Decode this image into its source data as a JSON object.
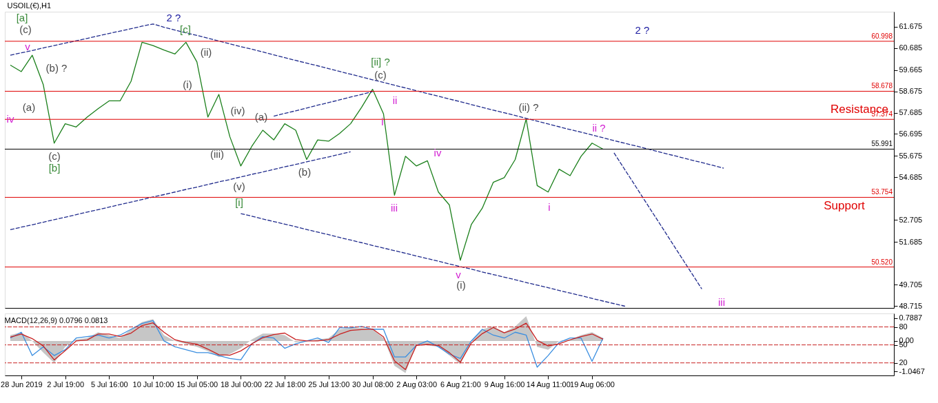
{
  "chart_data": [
    {
      "type": "line",
      "title": "USOIL(€),H1",
      "ylim": [
        48.62,
        62.37
      ],
      "categories": [
        null,
        null,
        null,
        null,
        null,
        null,
        null,
        null,
        null,
        null,
        null,
        null,
        null,
        null,
        null,
        null,
        null,
        null,
        null,
        null,
        null,
        null,
        null,
        null,
        null,
        null,
        null,
        null,
        null,
        null,
        null,
        null,
        null,
        null,
        null,
        null,
        null,
        null,
        null,
        null,
        null,
        null,
        null,
        null,
        null,
        null,
        null,
        null,
        null,
        null,
        null,
        null,
        null,
        null,
        null,
        null,
        null,
        null,
        null,
        null,
        null,
        null,
        null,
        null,
        null,
        null,
        null,
        null,
        null,
        null,
        null,
        null,
        null,
        null,
        null,
        null,
        null,
        null,
        null,
        null,
        null
      ],
      "yticks": [
        61.675,
        60.685,
        59.665,
        58.675,
        57.685,
        56.695,
        55.675,
        54.685,
        52.705,
        51.685,
        49.705,
        48.715
      ],
      "tick_labels": "y",
      "grid": false,
      "series": [
        {
          "color": "#1a7f1a",
          "line_style": "solid",
          "values": [
            59.89,
            59.59,
            60.35,
            58.99,
            56.27,
            57.17,
            57.02,
            57.48,
            57.87,
            58.23,
            58.23,
            59.14,
            60.95,
            60.8,
            60.59,
            60.41,
            60.95,
            60.04,
            57.48,
            58.53,
            56.57,
            55.21,
            56.12,
            56.87,
            56.42,
            57.17,
            56.87,
            55.51,
            56.42,
            56.36,
            56.72,
            57.17,
            57.93,
            58.77,
            57.63,
            53.85,
            55.66,
            55.21,
            55.45,
            54.0,
            53.4,
            50.83,
            52.49,
            53.25,
            54.45,
            54.67,
            55.51,
            57.39,
            54.3,
            54.0,
            55.06,
            54.76,
            55.66,
            56.27,
            55.99,
            null,
            null,
            null,
            null,
            null,
            null,
            null,
            null,
            null,
            null,
            null,
            null,
            null,
            null,
            null,
            null,
            null,
            null,
            null,
            null,
            null,
            null,
            null,
            null,
            null,
            null
          ]
        },
        {
          "color": "#1f2a8c",
          "line_style": "dashed",
          "values": [
            60.35,
            60.46,
            60.57,
            60.69,
            60.8,
            60.91,
            61.02,
            61.13,
            61.25,
            61.36,
            61.47,
            61.58,
            61.7,
            61.8,
            61.65,
            61.52,
            61.39,
            61.27,
            61.14,
            61.01,
            60.88,
            60.75,
            60.63,
            60.5,
            60.37,
            60.24,
            60.11,
            59.98,
            59.86,
            59.73,
            59.6,
            59.47,
            59.34,
            59.21,
            59.09,
            58.96,
            58.83,
            58.7,
            58.57,
            58.45,
            58.32,
            58.19,
            58.06,
            57.93,
            57.8,
            57.68,
            57.55,
            57.42,
            57.29,
            57.16,
            57.03,
            56.9,
            56.78,
            56.65,
            56.52,
            56.39,
            56.26,
            56.14,
            56.01,
            55.88,
            55.75,
            55.62,
            55.49,
            55.37,
            55.24,
            55.11,
            null,
            null,
            null,
            null,
            null,
            null,
            null,
            null,
            null,
            null,
            null,
            null,
            null,
            null,
            null
          ]
        },
        {
          "color": "#1f2a8c",
          "line_style": "dashed",
          "values": [
            52.25,
            52.37,
            52.48,
            52.6,
            52.72,
            52.83,
            52.95,
            53.07,
            53.18,
            53.3,
            53.42,
            53.53,
            53.65,
            53.77,
            53.88,
            54.0,
            54.12,
            54.23,
            54.35,
            54.47,
            54.58,
            54.7,
            54.82,
            54.93,
            55.05,
            55.17,
            55.28,
            55.4,
            55.52,
            55.63,
            55.75,
            55.87,
            null,
            null,
            null,
            null,
            null,
            null,
            null,
            null,
            null,
            null,
            null,
            null,
            null,
            null,
            null,
            null,
            null,
            null,
            null,
            null,
            null,
            null,
            null,
            null,
            null,
            null,
            null,
            null,
            null,
            null,
            null,
            null,
            null,
            null,
            null,
            null,
            null,
            null,
            null,
            null,
            null,
            null,
            null,
            null,
            null,
            null,
            null,
            null,
            null
          ]
        },
        {
          "color": "#1f2a8c",
          "line_style": "dashed",
          "values": [
            null,
            null,
            null,
            null,
            null,
            null,
            null,
            null,
            null,
            null,
            null,
            null,
            null,
            null,
            null,
            null,
            null,
            null,
            null,
            null,
            null,
            null,
            null,
            null,
            57.52,
            57.65,
            57.77,
            57.9,
            58.03,
            58.15,
            58.28,
            58.41,
            58.53,
            58.66,
            null,
            null,
            null,
            null,
            null,
            null,
            null,
            null,
            null,
            null,
            null,
            null,
            null,
            null,
            null,
            null,
            null,
            null,
            null,
            null,
            null,
            null,
            null,
            null,
            null,
            null,
            null,
            null,
            null,
            null,
            null,
            null,
            null,
            null,
            null,
            null,
            null,
            null,
            null,
            null,
            null,
            null,
            null,
            null,
            null,
            null,
            null
          ]
        },
        {
          "color": "#1f2a8c",
          "line_style": "dashed",
          "values": [
            null,
            null,
            null,
            null,
            null,
            null,
            null,
            null,
            null,
            null,
            null,
            null,
            null,
            null,
            null,
            null,
            null,
            null,
            null,
            null,
            null,
            53.0,
            52.88,
            52.75,
            52.63,
            52.51,
            52.39,
            52.26,
            52.14,
            52.02,
            51.89,
            51.77,
            51.65,
            51.52,
            51.4,
            51.28,
            51.16,
            51.03,
            50.91,
            50.79,
            50.66,
            50.54,
            50.42,
            50.29,
            50.17,
            50.05,
            49.93,
            49.8,
            49.68,
            49.56,
            49.43,
            49.31,
            49.19,
            49.06,
            48.94,
            48.82,
            48.7,
            null,
            null,
            null,
            null,
            null,
            null,
            null,
            null,
            null,
            null,
            null,
            null,
            null,
            null,
            null,
            null,
            null,
            null,
            null,
            null,
            null,
            null,
            null,
            null
          ]
        },
        {
          "color": "#1f2a8c",
          "line_style": "dashed",
          "values": [
            null,
            null,
            null,
            null,
            null,
            null,
            null,
            null,
            null,
            null,
            null,
            null,
            null,
            null,
            null,
            null,
            null,
            null,
            null,
            null,
            null,
            null,
            null,
            null,
            null,
            null,
            null,
            null,
            null,
            null,
            null,
            null,
            null,
            null,
            null,
            null,
            null,
            null,
            null,
            null,
            null,
            null,
            null,
            null,
            null,
            null,
            null,
            null,
            null,
            null,
            null,
            null,
            null,
            null,
            null,
            55.82,
            55.03,
            54.24,
            53.45,
            52.66,
            51.87,
            51.08,
            50.29,
            49.5,
            null,
            null,
            null,
            null,
            null,
            null,
            null,
            null,
            null,
            null,
            null,
            null,
            null,
            null,
            null,
            null,
            null
          ]
        }
      ],
      "ref_lines": [
        {
          "axis": "y",
          "value": 60.998,
          "label": "60.998",
          "color": "#e00000"
        },
        {
          "axis": "y",
          "value": 58.678,
          "label": "58.678",
          "color": "#e00000"
        },
        {
          "axis": "y",
          "value": 57.374,
          "label": "57.374",
          "color": "#e00000"
        },
        {
          "axis": "y",
          "value": 55.991,
          "label": "55.991",
          "color": "#000000"
        },
        {
          "axis": "y",
          "value": 53.754,
          "label": "53.754",
          "color": "#e00000"
        },
        {
          "axis": "y",
          "value": 50.52,
          "label": "50.520",
          "color": "#e00000"
        }
      ],
      "annotations": [
        "[a]",
        "(c)",
        "v",
        "(b) ?",
        "iv",
        "(a)",
        "(c)",
        "[b]",
        "2 ?",
        "[c]",
        "(ii)",
        "(i)",
        "(iv)",
        "(iii)",
        "(a)",
        "(b)",
        "(v)",
        "[i]",
        "[ii] ?",
        "(c)",
        "ii",
        "i",
        "iv",
        "iii",
        "v",
        "(i)",
        "(ii) ?",
        "ii ?",
        "i",
        "iii",
        "2 ?",
        "Resistance",
        "Support"
      ]
    },
    {
      "type": "line",
      "title": "MACD(12,26,9) 0.0796 0.0813",
      "ylim": [
        -1.183,
        0.944
      ],
      "y2lim": [
        -1,
        102.5
      ],
      "categories": [
        null,
        "28 Jun 2019",
        null,
        null,
        null,
        "2 Jul 19:00",
        null,
        null,
        null,
        "5 Jul 16:00",
        null,
        null,
        null,
        "10 Jul 10:00",
        null,
        null,
        null,
        "15 Jul 05:00",
        null,
        null,
        null,
        "18 Jul 00:00",
        null,
        null,
        null,
        "22 Jul 18:00",
        null,
        null,
        null,
        "25 Jul 13:00",
        null,
        null,
        null,
        "30 Jul 08:00",
        null,
        null,
        null,
        "2 Aug 03:00",
        null,
        null,
        null,
        "6 Aug 21:00",
        null,
        null,
        null,
        "9 Aug 16:00",
        null,
        null,
        null,
        "14 Aug 11:00",
        null,
        null,
        null,
        "19 Aug 06:00",
        null,
        null,
        null,
        null,
        null,
        null,
        null,
        null,
        null,
        null,
        null,
        null,
        null,
        null,
        null,
        null,
        null,
        null,
        null,
        null,
        null,
        null,
        null,
        null,
        null,
        null,
        null
      ],
      "yticks": [
        0.7887,
        {
          "value": 0,
          "label": "0.00"
        },
        -1.0467
      ],
      "y2ticks": [
        20,
        50,
        80
      ],
      "grid": false,
      "series": [
        {
          "type": "area",
          "color": "#c0c0c0",
          "values": [
            0.2,
            0.3,
            0.0,
            -0.4,
            -0.75,
            -0.2,
            0.05,
            0.1,
            0.3,
            0.2,
            0.1,
            0.4,
            0.65,
            0.75,
            0.2,
            0,
            -0.1,
            -0.2,
            -0.35,
            -0.55,
            -0.45,
            -0.25,
            0.05,
            0.25,
            0.25,
            0.2,
            -0.05,
            0,
            0.05,
            0.1,
            0.4,
            0.45,
            0.45,
            0.4,
            0.1,
            -0.85,
            -1.1,
            -0.1,
            -0.15,
            -0.2,
            -0.5,
            -0.8,
            0,
            0.4,
            0.5,
            0.3,
            0.5,
            0.85,
            -0.2,
            -0.3,
            0,
            0.05,
            0.2,
            0.3,
            0.1,
            null,
            null,
            null,
            null,
            null,
            null,
            null,
            null,
            null,
            null,
            null,
            null,
            null,
            null,
            null,
            null,
            null,
            null,
            null,
            null,
            null,
            null,
            null,
            null,
            null,
            null
          ]
        },
        {
          "color": "#3a8ee0",
          "values": [
            0.1,
            0.3,
            -0.5,
            -0.2,
            -0.5,
            -0.3,
            0.1,
            0.15,
            0.2,
            0.1,
            0.2,
            0.4,
            0.6,
            0.7,
            0.0,
            -0.2,
            -0.3,
            -0.4,
            -0.4,
            -0.5,
            -0.6,
            -0.65,
            -0.1,
            0.15,
            0.1,
            -0.25,
            -0.1,
            0.0,
            0.1,
            -0.05,
            0.45,
            0.45,
            0.5,
            0.4,
            0.4,
            -0.55,
            -0.55,
            -0.15,
            0.0,
            -0.2,
            -0.45,
            -0.6,
            0.0,
            0.4,
            0.2,
            0.1,
            0.3,
            0.2,
            -0.9,
            -0.5,
            -0.05,
            0.1,
            0.1,
            -0.7,
            0.1,
            null,
            null,
            null,
            null,
            null,
            null,
            null,
            null,
            null,
            null,
            null,
            null,
            null,
            null,
            null,
            null,
            null,
            null,
            null,
            null,
            null,
            null,
            null,
            null,
            null,
            null
          ]
        },
        {
          "color": "#c82020",
          "values": [
            0.13,
            0.24,
            0.08,
            -0.17,
            -0.65,
            -0.33,
            0.0,
            0.03,
            0.24,
            0.24,
            0.15,
            0.27,
            0.53,
            0.62,
            0.3,
            0.04,
            -0.05,
            -0.11,
            -0.28,
            -0.47,
            -0.49,
            -0.34,
            -0.1,
            0.11,
            0.22,
            0.27,
            0.05,
            0,
            0,
            0.05,
            0.23,
            0.36,
            0.39,
            0.41,
            0.14,
            -0.68,
            -0.98,
            -0.15,
            -0.12,
            -0.15,
            -0.4,
            -0.73,
            -0.07,
            0.25,
            0.46,
            0.28,
            0.41,
            0.61,
            0.02,
            -0.17,
            -0.1,
            0.04,
            0.15,
            0.24,
            0.06,
            null,
            null,
            null,
            null,
            null,
            null,
            null,
            null,
            null,
            null,
            null,
            null,
            null,
            null,
            null,
            null,
            null,
            null,
            null,
            null,
            null,
            null,
            null,
            null,
            null,
            null
          ]
        }
      ],
      "ref_lines": [
        {
          "axis": "y2",
          "value": 80,
          "color": "#c82020",
          "line_style": "dashed"
        },
        {
          "axis": "y2",
          "value": 50,
          "color": "#c82020",
          "line_style": "dashed"
        },
        {
          "axis": "y2",
          "value": 20,
          "color": "#c82020",
          "line_style": "dashed"
        }
      ]
    }
  ]
}
